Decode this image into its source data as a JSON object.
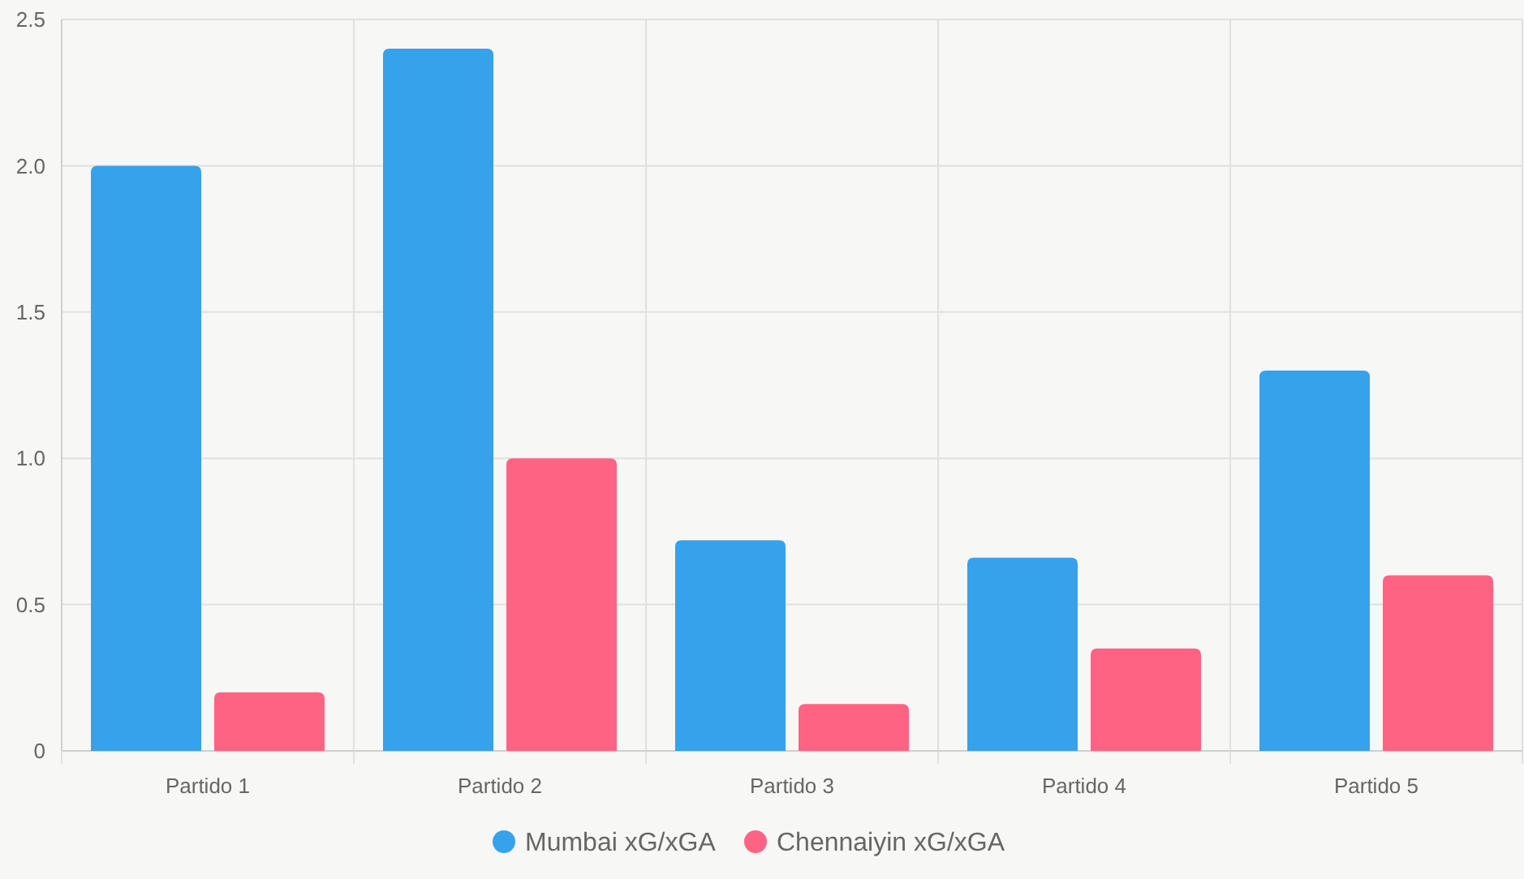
{
  "chart_data": {
    "type": "bar",
    "categories": [
      "Partido 1",
      "Partido 2",
      "Partido 3",
      "Partido 4",
      "Partido 5"
    ],
    "series": [
      {
        "name": "Mumbai xG/xGA",
        "color": "#36a2eb",
        "values": [
          2.0,
          2.4,
          0.72,
          0.66,
          1.3
        ]
      },
      {
        "name": "Chennaiyin xG/xGA",
        "color": "#ff6384",
        "values": [
          0.2,
          1.0,
          0.16,
          0.35,
          0.6
        ]
      }
    ],
    "ylim": [
      0,
      2.5
    ],
    "yticks": [
      {
        "value": 0,
        "label": "0"
      },
      {
        "value": 0.5,
        "label": "0.5"
      },
      {
        "value": 1,
        "label": "1.0"
      },
      {
        "value": 1.5,
        "label": "1.5"
      },
      {
        "value": 2,
        "label": "2.0"
      },
      {
        "value": 2.5,
        "label": "2.5"
      }
    ],
    "grid": true,
    "legend": "bottom"
  }
}
